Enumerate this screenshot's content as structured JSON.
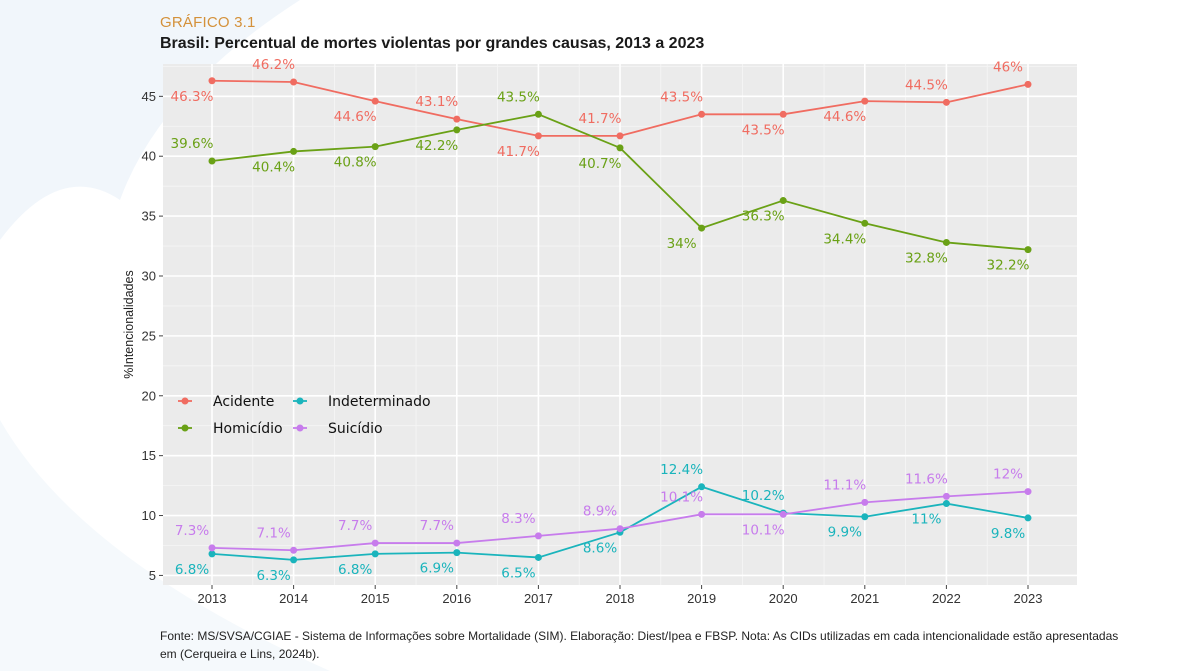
{
  "header": {
    "kicker": "GRÁFICO 3.1",
    "title": "Brasil: Percentual de mortes violentas por grandes causas, 2013 a 2023"
  },
  "chart_data": {
    "type": "line",
    "x": [
      2013,
      2014,
      2015,
      2016,
      2017,
      2018,
      2019,
      2020,
      2021,
      2022,
      2023
    ],
    "ylabel": "%Intencionalidades",
    "xlabel": "",
    "ylim": [
      4.2,
      47.7
    ],
    "y_ticks": [
      5,
      10,
      15,
      20,
      25,
      30,
      35,
      40,
      45
    ],
    "grid": true,
    "legend_position": "middle-left",
    "series": [
      {
        "name": "Acidente",
        "color": "#f06c61",
        "values": [
          46.3,
          46.2,
          44.6,
          43.1,
          41.7,
          41.7,
          43.5,
          43.5,
          44.6,
          44.5,
          46
        ],
        "labels": [
          "46.3%",
          "46.2%",
          "44.6%",
          "43.1%",
          "41.7%",
          "41.7%",
          "43.5%",
          "43.5%",
          "44.6%",
          "44.5%",
          "46%"
        ]
      },
      {
        "name": "Homicídio",
        "color": "#6aa116",
        "values": [
          39.6,
          40.4,
          40.8,
          42.2,
          43.5,
          40.7,
          34,
          36.3,
          34.4,
          32.8,
          32.2
        ],
        "labels": [
          "39.6%",
          "40.4%",
          "40.8%",
          "42.2%",
          "43.5%",
          "40.7%",
          "34%",
          "36.3%",
          "34.4%",
          "32.8%",
          "32.2%"
        ]
      },
      {
        "name": "Indeterminado",
        "color": "#1ab4bc",
        "values": [
          6.8,
          6.3,
          6.8,
          6.9,
          6.5,
          8.6,
          12.4,
          10.2,
          9.9,
          11,
          9.8
        ],
        "labels": [
          "6.8%",
          "6.3%",
          "6.8%",
          "6.9%",
          "6.5%",
          "8.6%",
          "12.4%",
          "10.2%",
          "9.9%",
          "11%",
          "9.8%"
        ]
      },
      {
        "name": "Suicídio",
        "color": "#c77cec",
        "values": [
          7.3,
          7.1,
          7.7,
          7.7,
          8.3,
          8.9,
          10.1,
          10.1,
          11.1,
          11.6,
          12
        ],
        "labels": [
          "7.3%",
          "7.1%",
          "7.7%",
          "7.7%",
          "8.3%",
          "8.9%",
          "10.1%",
          "10.1%",
          "11.1%",
          "11.6%",
          "12%"
        ]
      }
    ]
  },
  "footnote": "Fonte: MS/SVSA/CGIAE - Sistema de Informações sobre Mortalidade (SIM). Elaboração: Diest/Ipea e FBSP. Nota: As CIDs utilizadas em cada intencionalidade estão apresentadas em (Cerqueira e Lins, 2024b)."
}
